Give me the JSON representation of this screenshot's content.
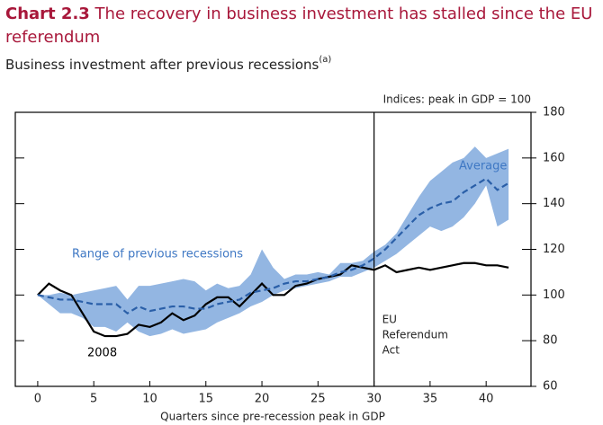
{
  "chart_data": {
    "type": "line",
    "chart_number": "Chart 2.3",
    "title": "The recovery in business investment has stalled since the EU referendum",
    "subtitle": "Business investment after previous recessions",
    "subtitle_note": "(a)",
    "y_axis_label": "Indices: peak in GDP = 100",
    "x_axis_label": "Quarters since pre-recession peak in GDP",
    "x": [
      0,
      1,
      2,
      3,
      4,
      5,
      6,
      7,
      8,
      9,
      10,
      11,
      12,
      13,
      14,
      15,
      16,
      17,
      18,
      19,
      20,
      21,
      22,
      23,
      24,
      25,
      26,
      27,
      28,
      29,
      30,
      31,
      32,
      33,
      34,
      35,
      36,
      37,
      38,
      39,
      40,
      41,
      42
    ],
    "range": {
      "name": "Range of previous recessions",
      "color": "#93b6e2",
      "lower": [
        100,
        96,
        92,
        92,
        90,
        86,
        86,
        84,
        88,
        84,
        82,
        83,
        85,
        83,
        84,
        85,
        88,
        90,
        92,
        95,
        97,
        100,
        102,
        103,
        104,
        105,
        106,
        108,
        108,
        110,
        112,
        115,
        118,
        122,
        126,
        130,
        128,
        130,
        134,
        140,
        148,
        130,
        133
      ],
      "upper": [
        100,
        100,
        101,
        100,
        101,
        102,
        103,
        104,
        98,
        104,
        104,
        105,
        106,
        107,
        106,
        102,
        105,
        103,
        104,
        109,
        120,
        112,
        107,
        109,
        109,
        110,
        109,
        114,
        114,
        115,
        119,
        122,
        127,
        135,
        143,
        150,
        154,
        158,
        160,
        165,
        160,
        162,
        164
      ]
    },
    "series": [
      {
        "name": "2008",
        "color": "#000000",
        "dashed": false,
        "values": [
          100,
          105,
          102,
          100,
          92,
          84,
          82,
          82,
          83,
          87,
          86,
          88,
          92,
          89,
          91,
          96,
          99,
          99,
          95,
          100,
          105,
          100,
          100,
          104,
          105,
          107,
          108,
          109,
          113,
          112,
          111,
          113,
          110,
          111,
          112,
          111,
          112,
          113,
          114,
          114,
          113,
          113,
          112
        ]
      },
      {
        "name": "Average",
        "color": "#2a5fa8",
        "dashed": true,
        "values": [
          100,
          99,
          98,
          98,
          97,
          96,
          96,
          96,
          92,
          95,
          93,
          94,
          95,
          95,
          94,
          94,
          96,
          97,
          98,
          101,
          102,
          103,
          105,
          106,
          106,
          107,
          108,
          110,
          111,
          113,
          116,
          120,
          125,
          130,
          135,
          138,
          140,
          141,
          145,
          148,
          151,
          146,
          149
        ]
      }
    ],
    "annotation": {
      "x": 30,
      "text": [
        "EU",
        "Referendum",
        "Act"
      ]
    },
    "xlim": [
      -2,
      44
    ],
    "ylim": [
      60,
      180
    ],
    "xticks": [
      0,
      5,
      10,
      15,
      20,
      25,
      30,
      35,
      40
    ],
    "yticks": [
      60,
      80,
      100,
      120,
      140,
      160,
      180
    ]
  }
}
